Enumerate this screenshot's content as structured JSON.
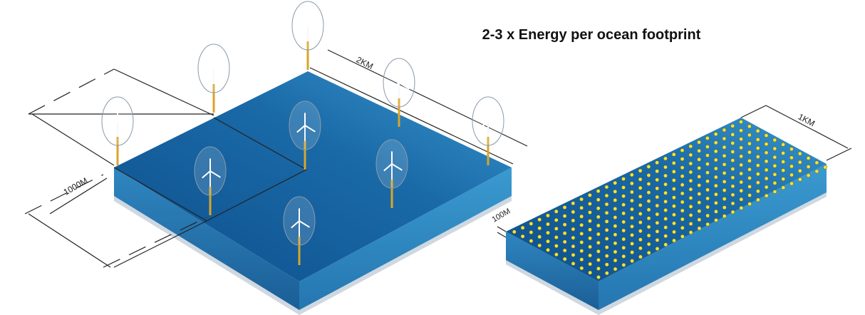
{
  "title": "2-3 x Energy per ocean footprint",
  "labels": {
    "left_width": "2KM",
    "left_depth": "1000M",
    "right_width": "1KM",
    "right_depth": "100M"
  }
}
